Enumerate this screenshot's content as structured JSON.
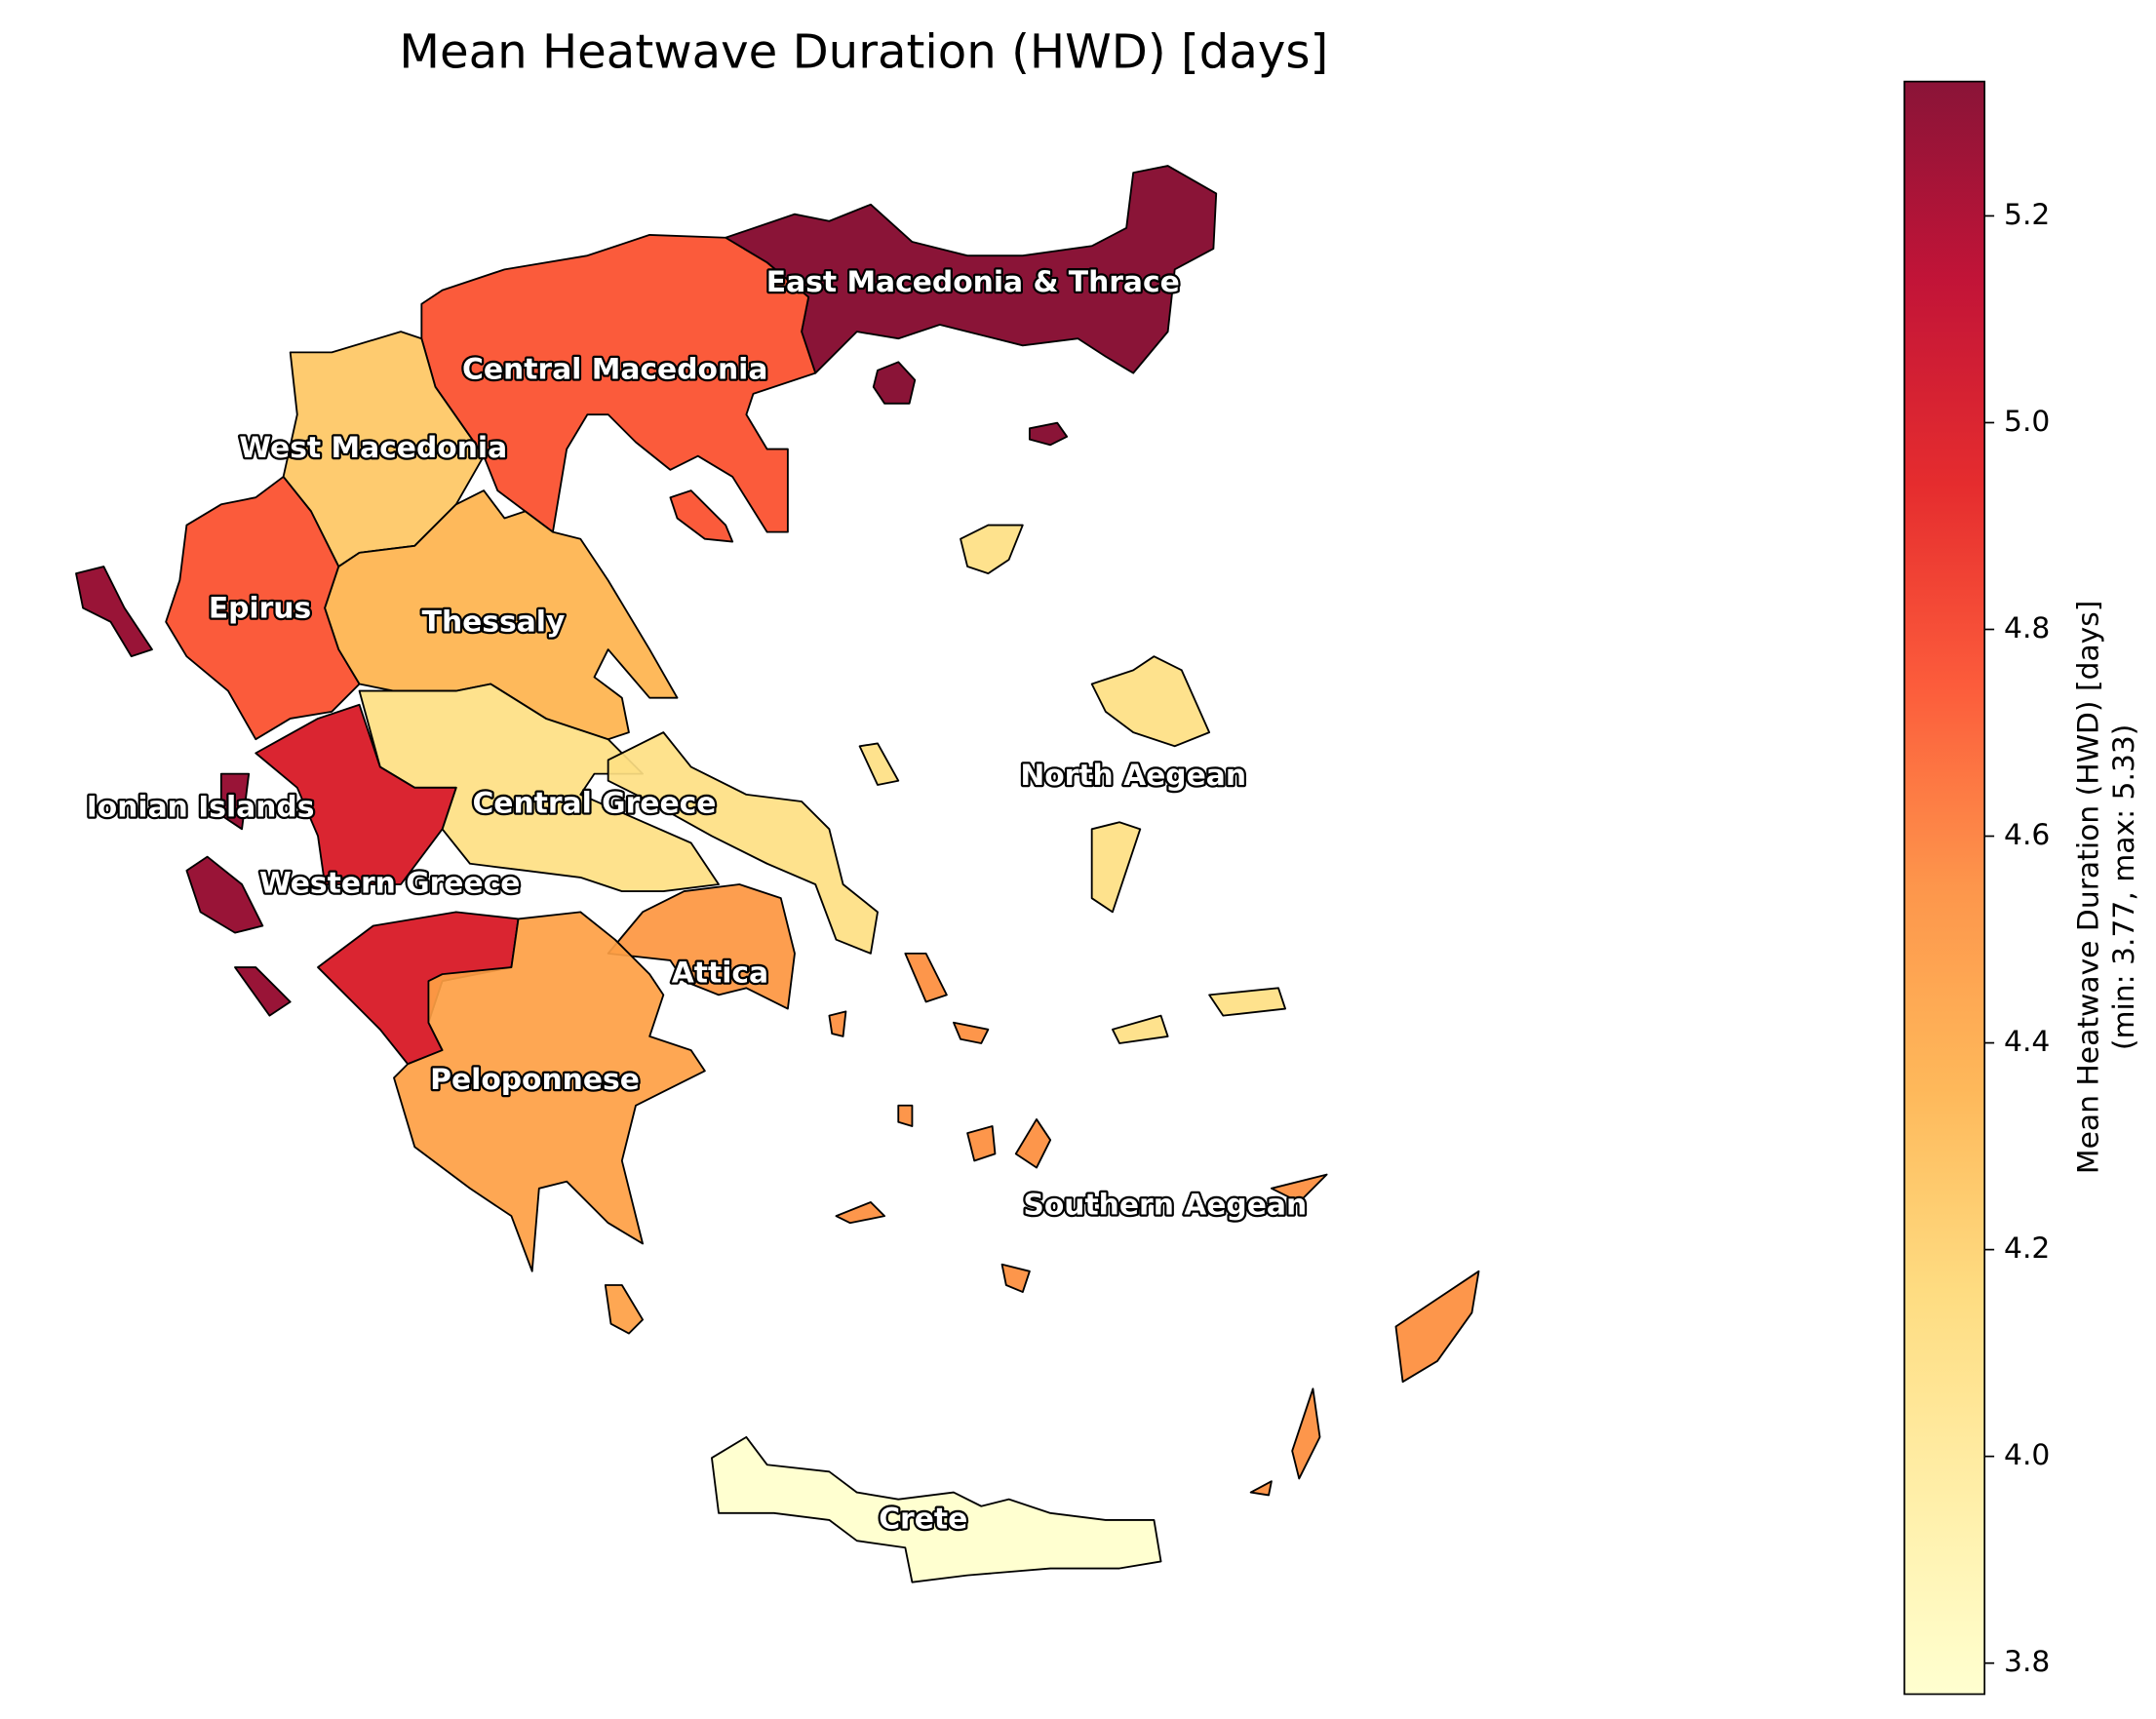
{
  "chart_data": {
    "type": "choropleth",
    "title": "Mean Heatwave Duration (HWD) [days]",
    "colormap": "YlOrRd",
    "regions": [
      {
        "name": "East Macedonia & Thrace",
        "value": 5.33
      },
      {
        "name": "Central Macedonia",
        "value": 4.75
      },
      {
        "name": "West Macedonia",
        "value": 4.25
      },
      {
        "name": "Epirus",
        "value": 4.75
      },
      {
        "name": "Thessaly",
        "value": 4.35
      },
      {
        "name": "Ionian Islands",
        "value": 5.28
      },
      {
        "name": "Central Greece",
        "value": 4.1
      },
      {
        "name": "Western Greece",
        "value": 5.0
      },
      {
        "name": "North Aegean",
        "value": 4.1
      },
      {
        "name": "Attica",
        "value": 4.5
      },
      {
        "name": "Peloponnese",
        "value": 4.45
      },
      {
        "name": "Southern Aegean",
        "value": 4.55
      },
      {
        "name": "Crete",
        "value": 3.77
      }
    ],
    "colorbar": {
      "label": "Mean Heatwave Duration (HWD) [days]",
      "sublabel": "(min: 3.77, max: 5.33)",
      "lim": [
        3.77,
        5.33
      ],
      "ticks": [
        3.8,
        {
          "value": 4,
          "label": "4.0"
        },
        4.2,
        4.4,
        4.6,
        4.8,
        {
          "value": 5,
          "label": "5.0"
        },
        5.2
      ]
    }
  }
}
